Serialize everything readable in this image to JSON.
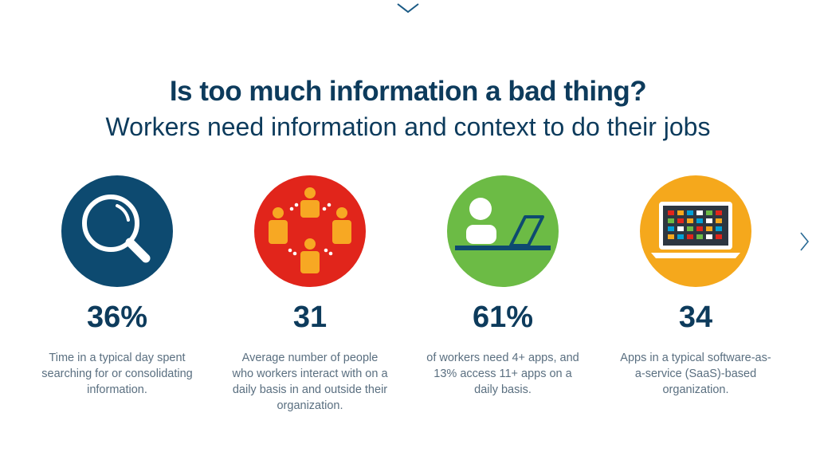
{
  "header": {
    "title": "Is too much information a bad thing?",
    "subtitle": "Workers need information and context to do their jobs"
  },
  "colors": {
    "navy": "#0d4a70",
    "red": "#e1251b",
    "green": "#6cbb45",
    "orange": "#f5a81c",
    "text_dark": "#0d3b5c",
    "text_body": "#5a6f80"
  },
  "stats": [
    {
      "icon": "magnifier-icon",
      "value": "36%",
      "lines": [
        "Time in a typical day spent",
        "searching for or consolidating",
        "information."
      ]
    },
    {
      "icon": "people-network-icon",
      "value": "31",
      "lines": [
        "Average number of people",
        "who workers interact with on a",
        "daily basis in and outside their",
        "organization."
      ]
    },
    {
      "icon": "person-laptop-icon",
      "value": "61%",
      "lines": [
        "of workers need 4+ apps, and",
        "13% access 11+ apps on a",
        "daily basis."
      ]
    },
    {
      "icon": "laptop-apps-icon",
      "value": "34",
      "lines": [
        "Apps in a typical software-as-",
        "a-service (SaaS)-based",
        "organization."
      ]
    }
  ],
  "nav": {
    "scroll_down_icon": "chevron-down-icon",
    "next_icon": "chevron-right-icon"
  }
}
